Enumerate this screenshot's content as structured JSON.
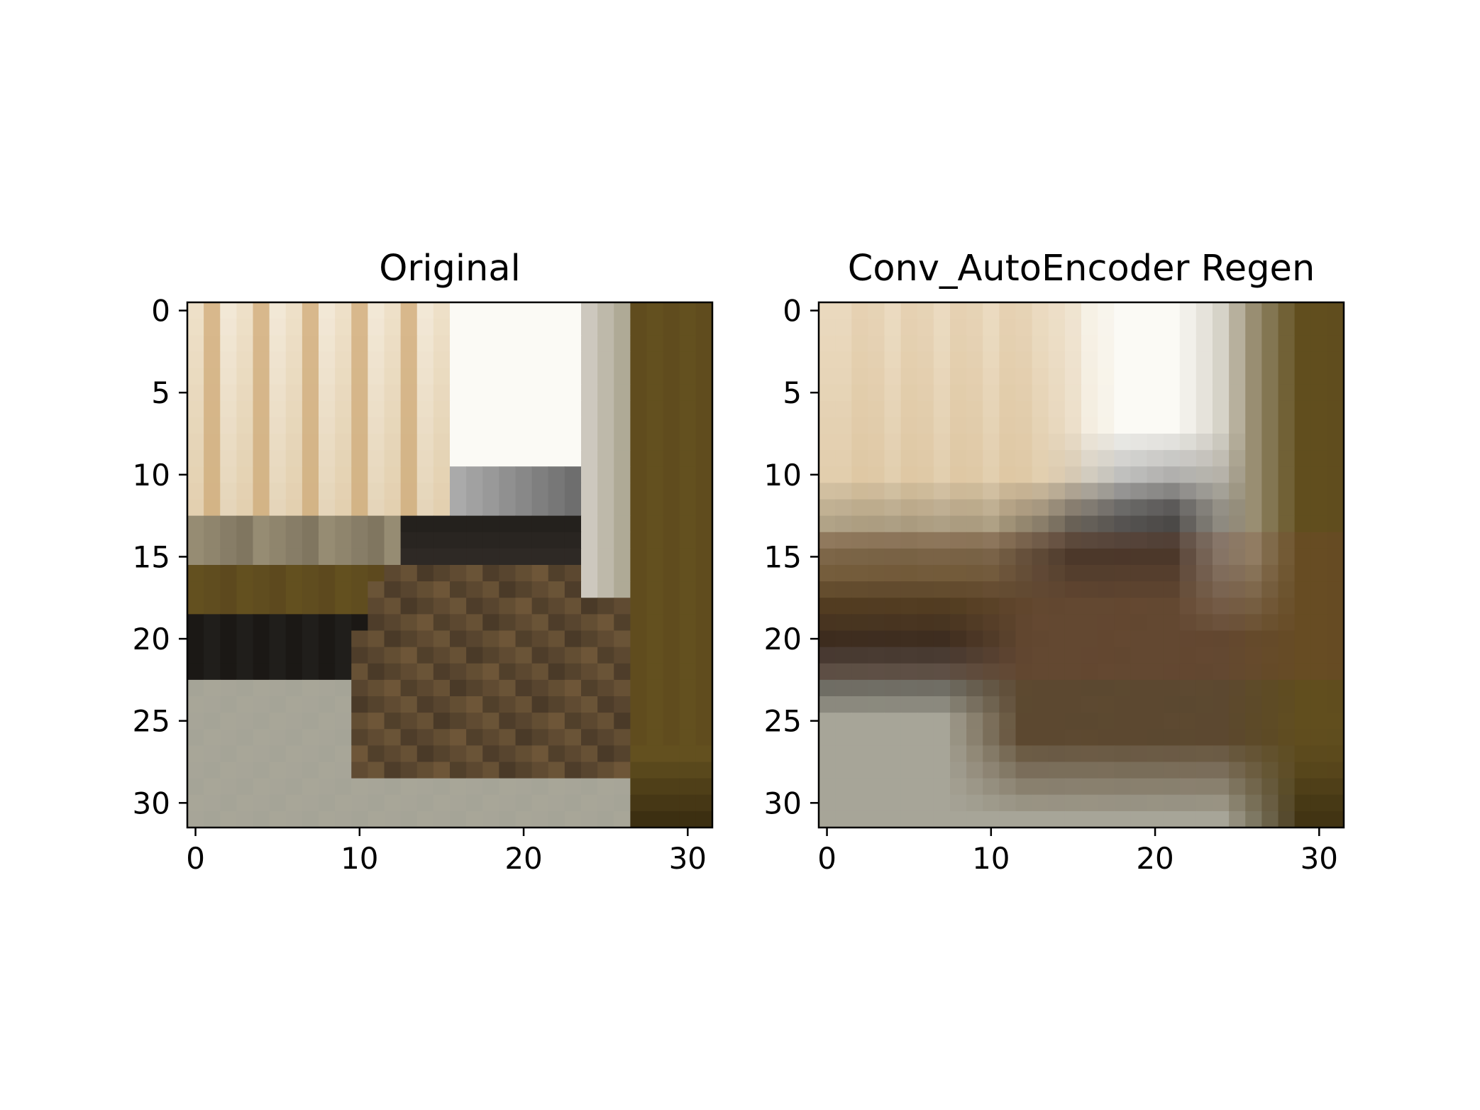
{
  "figure": {
    "panels": [
      {
        "title": "Original",
        "xticks": [
          "0",
          "10",
          "20",
          "30"
        ],
        "yticks": [
          "0",
          "5",
          "10",
          "15",
          "20",
          "25",
          "30"
        ]
      },
      {
        "title": "Conv_AutoEncoder Regen",
        "xticks": [
          "0",
          "10",
          "20",
          "30"
        ],
        "yticks": [
          "0",
          "5",
          "10",
          "15",
          "20",
          "25",
          "30"
        ]
      }
    ],
    "image": {
      "resolution": 32,
      "tick_values_x": [
        0,
        10,
        20,
        30
      ],
      "tick_values_y": [
        0,
        5,
        10,
        15,
        20,
        25,
        30
      ],
      "colors": {
        "cream": "#eee0c8",
        "tan": "#d8b88c",
        "white": "#fbfaf5",
        "olive": "#63501f",
        "dark": "#1b1815",
        "gray": "#a8a698",
        "brown": "#4a3a28"
      }
    }
  }
}
